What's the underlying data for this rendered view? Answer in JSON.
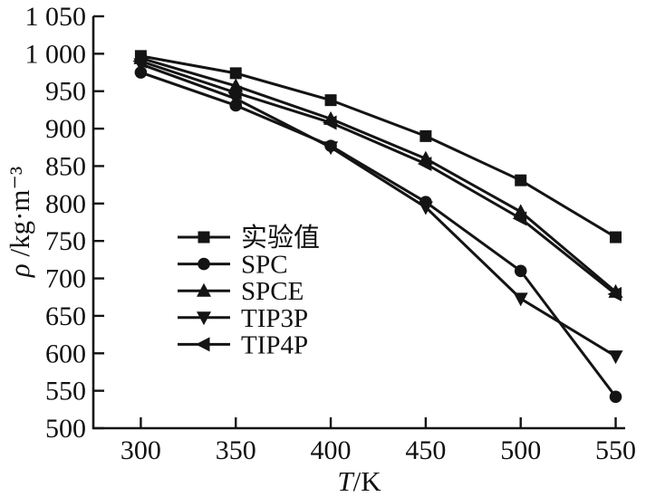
{
  "figure": {
    "background": "#ffffff",
    "ink_color": "#141414"
  },
  "chart_data": {
    "type": "line",
    "title": "",
    "xlabel": {
      "symbol": "T",
      "unit": "/K"
    },
    "ylabel": {
      "symbol": "ρ",
      "unit": " /kg·m⁻³"
    },
    "x": [
      300,
      350,
      400,
      450,
      500,
      550
    ],
    "series": [
      {
        "name": "实验值",
        "marker": "square",
        "values": [
          997,
          974,
          938,
          890,
          831,
          755
        ]
      },
      {
        "name": "SPC",
        "marker": "circle",
        "values": [
          975,
          931,
          877,
          802,
          710,
          542
        ]
      },
      {
        "name": "SPCE",
        "marker": "triangle-up",
        "values": [
          994,
          957,
          913,
          860,
          789,
          682
        ]
      },
      {
        "name": "TIP3P",
        "marker": "triangle-down",
        "values": [
          986,
          940,
          875,
          795,
          673,
          596
        ]
      },
      {
        "name": "TIP4P",
        "marker": "triangle-left",
        "values": [
          990,
          948,
          908,
          853,
          780,
          679
        ]
      }
    ],
    "xlim": [
      275,
      555
    ],
    "ylim": [
      500,
      1050
    ],
    "x_ticks": [
      300,
      350,
      400,
      450,
      500,
      550
    ],
    "x_tick_labels": [
      "300",
      "350",
      "400",
      "450",
      "500",
      "550"
    ],
    "y_ticks": [
      1050,
      1000,
      950,
      900,
      850,
      800,
      750,
      700,
      650,
      600,
      550,
      500
    ],
    "y_tick_labels": [
      "1 050",
      "1 000",
      "950",
      "900",
      "850",
      "800",
      "750",
      "700",
      "650",
      "600",
      "550",
      "500"
    ],
    "grid": false,
    "legend_position": "inside-left-middle",
    "legend_entries": [
      "实验值",
      "SPC",
      "SPCE",
      "TIP3P",
      "TIP4P"
    ]
  }
}
